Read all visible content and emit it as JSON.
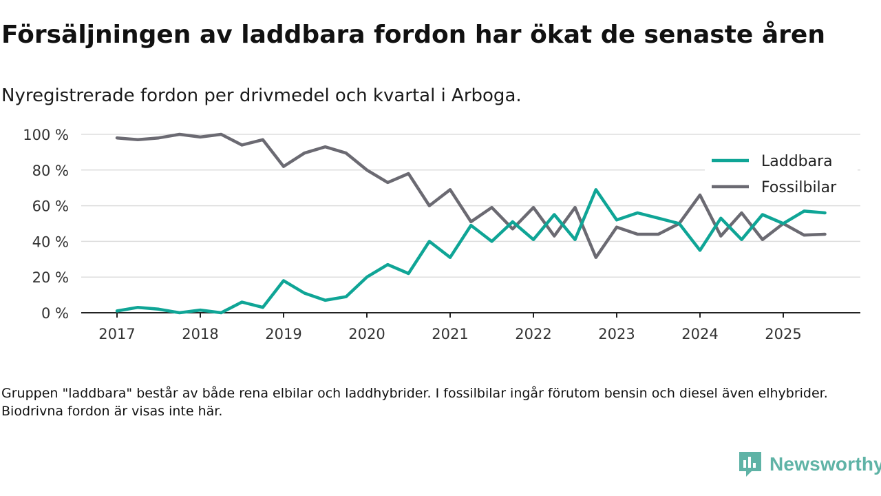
{
  "title": "Försäljningen av laddbara fordon har ökat de senaste åren",
  "subtitle": "Nyregistrerade fordon per drivmedel och kvartal i Arboga.",
  "footnote": "Gruppen \"laddbara\" består av både rena elbilar och laddhybrider. I fossilbilar ingår förutom bensin och diesel även elhybrider. Biodrivna fordon är visas inte här.",
  "brand": {
    "name": "Newsworthy",
    "color": "#5fb3a6"
  },
  "chart_data": {
    "type": "line",
    "title": "Försäljningen av laddbara fordon har ökat de senaste åren",
    "xlabel": "",
    "ylabel": "",
    "ylim": [
      0,
      100
    ],
    "xlim": [
      2017,
      2025.75
    ],
    "y_ticks": [
      0,
      20,
      40,
      60,
      80,
      100
    ],
    "y_tick_labels": [
      "0 %",
      "20 %",
      "40 %",
      "60 %",
      "80 %",
      "100 %"
    ],
    "x_ticks": [
      2017,
      2018,
      2019,
      2020,
      2021,
      2022,
      2023,
      2024,
      2025
    ],
    "x_tick_labels": [
      "2017",
      "2018",
      "2019",
      "2020",
      "2021",
      "2022",
      "2023",
      "2024",
      "2025"
    ],
    "grid": "horizontal",
    "legend": "top-right",
    "x": [
      2017.0,
      2017.25,
      2017.5,
      2017.75,
      2018.0,
      2018.25,
      2018.5,
      2018.75,
      2019.0,
      2019.25,
      2019.5,
      2019.75,
      2020.0,
      2020.25,
      2020.5,
      2020.75,
      2021.0,
      2021.25,
      2021.5,
      2021.75,
      2022.0,
      2022.25,
      2022.5,
      2022.75,
      2023.0,
      2023.25,
      2023.5,
      2023.75,
      2024.0,
      2024.25,
      2024.5,
      2024.75,
      2025.0,
      2025.25,
      2025.5
    ],
    "series": [
      {
        "name": "Laddbara",
        "color": "#0fa596",
        "values": [
          1,
          3,
          2,
          0,
          1.5,
          0,
          6,
          3,
          18,
          11,
          7,
          9,
          20,
          27,
          22,
          40,
          31,
          49,
          40,
          51,
          41,
          55,
          41,
          69,
          52,
          56,
          53,
          50,
          35,
          53,
          41,
          55,
          50,
          57,
          56
        ]
      },
      {
        "name": "Fossilbilar",
        "color": "#6b6a72",
        "values": [
          98,
          97,
          98,
          100,
          98.5,
          100,
          94,
          97,
          82,
          89.5,
          93,
          89.5,
          80,
          73,
          78,
          60,
          69,
          51,
          59,
          47,
          59,
          43,
          59,
          31,
          48,
          44,
          44,
          50,
          66,
          43,
          56,
          41,
          50,
          43.5,
          44
        ]
      }
    ]
  }
}
